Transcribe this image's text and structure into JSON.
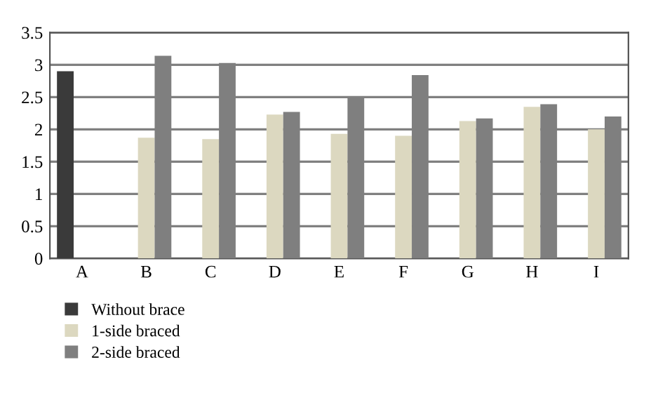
{
  "chart_data": {
    "type": "bar",
    "categories": [
      "A",
      "B",
      "C",
      "D",
      "E",
      "F",
      "G",
      "H",
      "I"
    ],
    "series": [
      {
        "name": "Without brace",
        "color": "#3a3a3a",
        "values": [
          2.9,
          null,
          null,
          null,
          null,
          null,
          null,
          null,
          null
        ]
      },
      {
        "name": "1-side braced",
        "color": "#dcd8c0",
        "values": [
          null,
          1.87,
          1.85,
          2.23,
          1.93,
          1.9,
          2.13,
          2.35,
          2.0
        ]
      },
      {
        "name": "2-side braced",
        "color": "#7f7f7f",
        "values": [
          null,
          3.14,
          3.03,
          2.27,
          2.49,
          2.84,
          2.17,
          2.39,
          2.2
        ]
      }
    ],
    "ylim": [
      0,
      3.5
    ],
    "yticks": [
      0,
      0.5,
      1,
      1.5,
      2,
      2.5,
      3,
      3.5
    ],
    "grid": "y",
    "legend": "bottom left"
  }
}
